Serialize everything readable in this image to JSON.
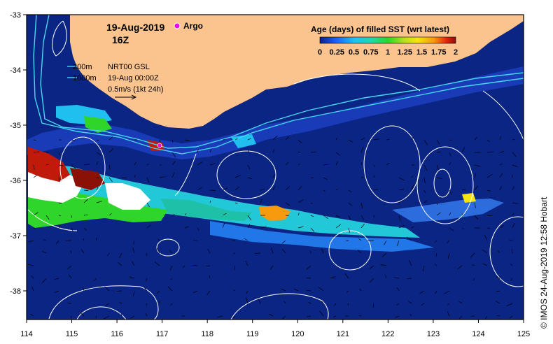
{
  "map": {
    "date": "19-Aug-2019",
    "time": "16Z",
    "argo_label": "Argo",
    "depth_legend": [
      "200m",
      "1000m"
    ],
    "product": "NRT00 GSL",
    "product_date": "19-Aug 00:00Z",
    "scale_label": "0.5m/s (1kt 24h)",
    "colorbar_title": "Age (days) of filled SST (wrt latest)",
    "colorbar_ticks": [
      "0",
      "0.25",
      "0.5",
      "0.75",
      "1",
      "1.25",
      "1.5",
      "1.75",
      "2"
    ],
    "x_ticks": [
      "114",
      "115",
      "116",
      "117",
      "118",
      "119",
      "120",
      "121",
      "122",
      "123",
      "124",
      "125"
    ],
    "y_ticks": [
      "-33",
      "-34",
      "-35",
      "-36",
      "-37",
      "-38"
    ],
    "credit": "© IMOS 24-Aug-2019 12:58 Hobart",
    "colors": {
      "land": "#fbc48f",
      "ocean": "#0b2585",
      "argo": "#ee00ee",
      "contour": "#ffffff",
      "depth_line": "#46d8f0"
    }
  }
}
